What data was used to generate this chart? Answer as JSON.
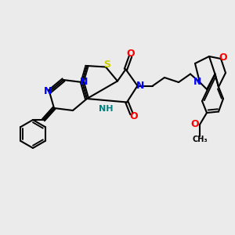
{
  "background_color": "#ebebeb",
  "atom_colors": {
    "N": "#0000ff",
    "O": "#ff0000",
    "S": "#cccc00",
    "H": "#008080",
    "C": "#000000"
  },
  "bond_color": "#000000",
  "bond_lw": 1.5,
  "font_size": 8,
  "figsize": [
    3.0,
    3.0
  ],
  "dpi": 100
}
